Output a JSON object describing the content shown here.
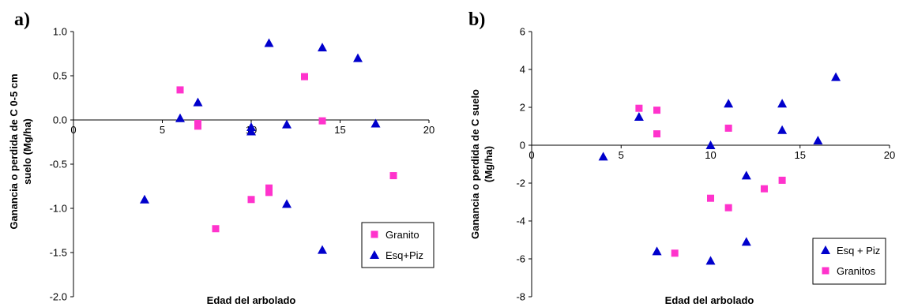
{
  "colors": {
    "granito": "#ff33cc",
    "esq": "#0000cc",
    "axis": "#000000"
  },
  "chart_data": [
    {
      "type": "scatter",
      "panel_label": "a)",
      "xlabel": "Edad del arbolado",
      "ylabel": [
        "Ganancia o perdida de C 0-5 cm",
        "suelo (Mg/ha)"
      ],
      "xlim": [
        0,
        20
      ],
      "ylim": [
        -2.0,
        1.0
      ],
      "xticks": [
        0,
        5,
        10,
        15,
        20
      ],
      "yticks": [
        -2.0,
        -1.5,
        -1.0,
        -0.5,
        0.0,
        0.5,
        1.0
      ],
      "ytick_labels": [
        "-2.0",
        "-1.5",
        "-1.0",
        "-0.5",
        "0.0",
        "0.5",
        "1.0"
      ],
      "xtick_labels": [
        "0",
        "5",
        "10",
        "15",
        "20"
      ],
      "grid": false,
      "legend_position": "bottom-right",
      "series": [
        {
          "name": "Granito",
          "marker": "square",
          "color": "#ff33cc",
          "points": [
            [
              6,
              0.34
            ],
            [
              7,
              -0.04
            ],
            [
              7,
              -0.07
            ],
            [
              8,
              -1.23
            ],
            [
              10,
              -0.9
            ],
            [
              11,
              -0.77
            ],
            [
              11,
              -0.82
            ],
            [
              13,
              0.49
            ],
            [
              14,
              -0.01
            ],
            [
              18,
              -0.63
            ]
          ]
        },
        {
          "name": "Esq+Piz",
          "marker": "triangle",
          "color": "#0000cc",
          "points": [
            [
              4,
              -0.9
            ],
            [
              6,
              0.02
            ],
            [
              7,
              0.2
            ],
            [
              10,
              -0.08
            ],
            [
              10,
              -0.13
            ],
            [
              11,
              0.87
            ],
            [
              12,
              -0.05
            ],
            [
              12,
              -0.95
            ],
            [
              14,
              0.82
            ],
            [
              14,
              -1.47
            ],
            [
              16,
              0.7
            ],
            [
              17,
              -0.04
            ]
          ]
        }
      ],
      "legend_order": [
        "Granito",
        "Esq+Piz"
      ]
    },
    {
      "type": "scatter",
      "panel_label": "b)",
      "xlabel": "Edad del arbolado",
      "ylabel": [
        "Ganancia o perdida de C suelo",
        "(Mg/ha)"
      ],
      "xlim": [
        0,
        20
      ],
      "ylim": [
        -8,
        6
      ],
      "xticks": [
        0,
        5,
        10,
        15,
        20
      ],
      "yticks": [
        -8,
        -6,
        -4,
        -2,
        0,
        2,
        4,
        6
      ],
      "ytick_labels": [
        "-8",
        "-6",
        "-4",
        "-2",
        "0",
        "2",
        "4",
        "6"
      ],
      "xtick_labels": [
        "0",
        "5",
        "10",
        "15",
        "20"
      ],
      "grid": false,
      "legend_position": "bottom-right",
      "series": [
        {
          "name": "Esq + Piz",
          "marker": "triangle",
          "color": "#0000cc",
          "points": [
            [
              4,
              -0.6
            ],
            [
              6,
              1.5
            ],
            [
              7,
              -5.6
            ],
            [
              10,
              0.0
            ],
            [
              10,
              -6.1
            ],
            [
              11,
              2.2
            ],
            [
              12,
              -1.6
            ],
            [
              12,
              -5.1
            ],
            [
              14,
              0.8
            ],
            [
              14,
              2.2
            ],
            [
              16,
              0.25
            ],
            [
              17,
              3.6
            ]
          ]
        },
        {
          "name": "Granitos",
          "marker": "square",
          "color": "#ff33cc",
          "points": [
            [
              6,
              1.95
            ],
            [
              7,
              1.85
            ],
            [
              7,
              0.6
            ],
            [
              8,
              -5.7
            ],
            [
              10,
              -2.8
            ],
            [
              11,
              0.9
            ],
            [
              11,
              -3.3
            ],
            [
              13,
              -2.3
            ],
            [
              14,
              -1.85
            ]
          ]
        }
      ],
      "legend_order": [
        "Esq + Piz",
        "Granitos"
      ]
    }
  ]
}
